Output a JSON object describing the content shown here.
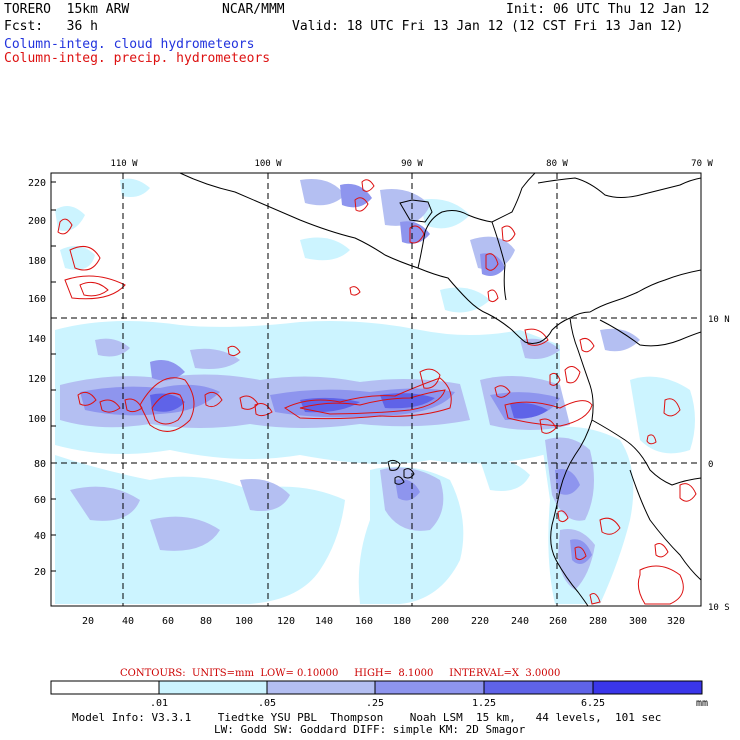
{
  "header": {
    "title": "TORERO  15km ARW",
    "org": "NCAR/MMM",
    "init": "Init: 06 UTC Thu 12 Jan 12",
    "fcst": "Fcst:   36 h",
    "valid": "Valid: 18 UTC Fri 13 Jan 12 (12 CST Fri 13 Jan 12)",
    "legend_cloud": "Column-integ. cloud hydrometeors",
    "legend_precip": "Column-integ. precip. hydrometeors"
  },
  "colors": {
    "cloud_legend": "#2233dd",
    "precip_contour": "#dd1111",
    "shade_levels": [
      "#ffffff",
      "#ccf4ff",
      "#b4bff2",
      "#8e95ee",
      "#5f63e8",
      "#3a36ea"
    ]
  },
  "axes": {
    "y_ticks": [
      "20",
      "40",
      "60",
      "80",
      "100",
      "120",
      "140",
      "160",
      "180",
      "200",
      "220"
    ],
    "x_ticks": [
      "20",
      "40",
      "60",
      "80",
      "100",
      "120",
      "140",
      "160",
      "180",
      "200",
      "220",
      "240",
      "260",
      "280",
      "300",
      "320"
    ],
    "lon_labels": [
      "110 W",
      "100 W",
      "90 W",
      "80 W",
      "70 W"
    ],
    "lat_labels": [
      "10 N",
      "0",
      "10 S"
    ]
  },
  "contour_info": {
    "label": "CONTOURS:  UNITS=mm  LOW= 0.10000     HIGH=  8.1000     INTERVAL=X  3.0000"
  },
  "colorbar": {
    "labels": [
      ".01",
      ".05",
      ".25",
      "1.25",
      "6.25"
    ],
    "unit": "mm"
  },
  "footer": {
    "line1": "Model Info: V3.3.1    Tiedtke YSU PBL  Thompson    Noah LSM  15 km,   44 levels,  101 sec",
    "line2": "LW: Godd SW: Goddard DIFF: simple KM: 2D Smagor"
  }
}
